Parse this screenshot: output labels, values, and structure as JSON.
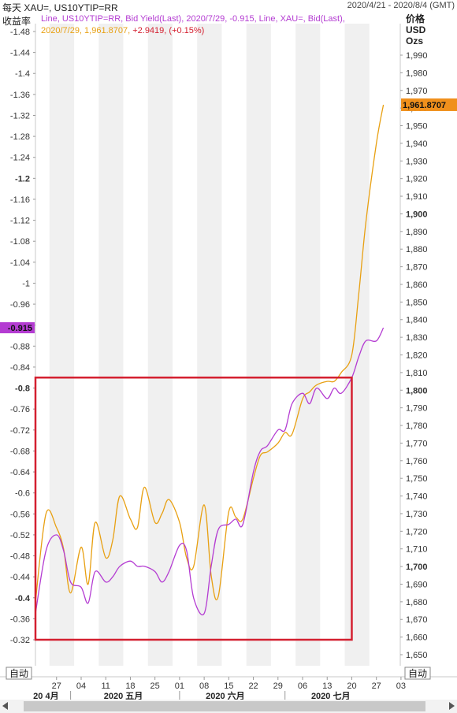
{
  "header": {
    "title": "每天 XAU=, US10YTIP=RR",
    "date_range": "2020/4/21 - 2020/8/4 (GMT)"
  },
  "legend": {
    "line1": "Line, US10YTIP=RR, Bid Yield(Last), 2020/7/29, -0.915, Line, XAU=, Bid(Last),",
    "line2_prefix": "2020/7/29, 1,961.8707,",
    "line2_change": "+2.9419, (+0.15%)"
  },
  "left_axis": {
    "title": "收益率",
    "badge": "-0.915",
    "auto_label": "自动"
  },
  "right_axis": {
    "title_lines": [
      "价格",
      "USD",
      "Ozs"
    ],
    "badge": "1,961.8707",
    "auto_label": "自动"
  },
  "colors": {
    "yield": "#b43cd2",
    "gold": "#e8a012",
    "highlight_box": "#d42030",
    "band": "#f0f0f0"
  },
  "chart_data": {
    "type": "line",
    "x": [
      "2020-04-21",
      "2020-04-24",
      "2020-04-27",
      "2020-04-29",
      "2020-05-01",
      "2020-05-04",
      "2020-05-06",
      "2020-05-08",
      "2020-05-11",
      "2020-05-13",
      "2020-05-15",
      "2020-05-18",
      "2020-05-20",
      "2020-05-22",
      "2020-05-25",
      "2020-05-27",
      "2020-05-29",
      "2020-06-01",
      "2020-06-03",
      "2020-06-05",
      "2020-06-08",
      "2020-06-10",
      "2020-06-12",
      "2020-06-15",
      "2020-06-17",
      "2020-06-19",
      "2020-06-22",
      "2020-06-24",
      "2020-06-26",
      "2020-06-29",
      "2020-07-01",
      "2020-07-03",
      "2020-07-06",
      "2020-07-08",
      "2020-07-10",
      "2020-07-13",
      "2020-07-15",
      "2020-07-17",
      "2020-07-20",
      "2020-07-22",
      "2020-07-24",
      "2020-07-27",
      "2020-07-29"
    ],
    "series": [
      {
        "name": "US10YTIP=RR",
        "axis": "left",
        "values": [
          -0.37,
          -0.49,
          -0.52,
          -0.49,
          -0.43,
          -0.42,
          -0.39,
          -0.45,
          -0.43,
          -0.44,
          -0.46,
          -0.47,
          -0.46,
          -0.46,
          -0.45,
          -0.43,
          -0.45,
          -0.5,
          -0.49,
          -0.4,
          -0.37,
          -0.46,
          -0.53,
          -0.54,
          -0.55,
          -0.54,
          -0.64,
          -0.68,
          -0.69,
          -0.72,
          -0.72,
          -0.77,
          -0.79,
          -0.77,
          -0.8,
          -0.78,
          -0.8,
          -0.79,
          -0.82,
          -0.86,
          -0.89,
          -0.89,
          -0.915
        ]
      },
      {
        "name": "XAU=",
        "axis": "right",
        "values": [
          1680,
          1730,
          1722,
          1710,
          1685,
          1711,
          1690,
          1725,
          1705,
          1715,
          1740,
          1727,
          1722,
          1745,
          1725,
          1730,
          1738,
          1725,
          1705,
          1700,
          1735,
          1695,
          1683,
          1731,
          1728,
          1727,
          1750,
          1763,
          1765,
          1770,
          1776,
          1775,
          1795,
          1799,
          1803,
          1805,
          1805,
          1810,
          1820,
          1855,
          1895,
          1940,
          1961.87
        ]
      }
    ],
    "left_ylim": [
      -0.32,
      -1.48
    ],
    "right_ylim": [
      1660,
      1990
    ],
    "left_ticks": [
      "-1.48",
      "-1.44",
      "-1.4",
      "-1.36",
      "-1.32",
      "-1.28",
      "-1.24",
      "-1.2",
      "-1.16",
      "-1.12",
      "-1.08",
      "-1.04",
      "-1",
      "-0.96",
      "-0.92",
      "-0.88",
      "-0.84",
      "-0.8",
      "-0.76",
      "-0.72",
      "-0.68",
      "-0.64",
      "-0.6",
      "-0.56",
      "-0.52",
      "-0.48",
      "-0.44",
      "-0.4",
      "-0.36",
      "-0.32"
    ],
    "right_ticks": [
      "1,990",
      "1,980",
      "1,970",
      "1,960",
      "1,950",
      "1,940",
      "1,930",
      "1,920",
      "1,910",
      "1,900",
      "1,890",
      "1,880",
      "1,870",
      "1,860",
      "1,850",
      "1,840",
      "1,830",
      "1,820",
      "1,810",
      "1,800",
      "1,790",
      "1,780",
      "1,770",
      "1,760",
      "1,750",
      "1,740",
      "1,730",
      "1,720",
      "1,710",
      "1,700",
      "1,690",
      "1,680",
      "1,670",
      "1,660",
      "1,650"
    ],
    "x_ticks": [
      "27",
      "04",
      "11",
      "18",
      "25",
      "01",
      "08",
      "15",
      "22",
      "29",
      "06",
      "13",
      "20",
      "27",
      "03"
    ],
    "month_labels": [
      "20 4月",
      "2020 五月",
      "2020 六月",
      "2020 七月"
    ],
    "highlight_range": {
      "x": [
        "2020-04-21",
        "2020-07-20"
      ],
      "left_y": [
        -0.32,
        -0.82
      ]
    },
    "grid": false
  }
}
